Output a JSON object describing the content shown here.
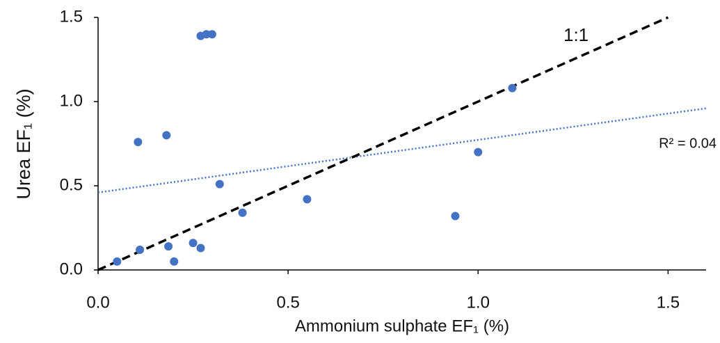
{
  "chart_data": {
    "type": "scatter",
    "x_label": "Ammonium sulphate EF₁ (%)",
    "y_label": "Urea EF₁ (%)",
    "series": [
      {
        "color": "#4472c4",
        "x": [
          0.05,
          0.11,
          0.105,
          0.18,
          0.185,
          0.2,
          0.25,
          0.27,
          0.27,
          0.285,
          0.3,
          0.32,
          0.38,
          0.55,
          0.94,
          1.0,
          1.09
        ],
        "values": [
          0.05,
          0.12,
          0.76,
          0.8,
          0.14,
          0.05,
          0.16,
          0.13,
          1.39,
          1.4,
          1.4,
          0.51,
          0.34,
          0.42,
          0.32,
          0.7,
          1.08
        ]
      }
    ],
    "reference_line": {
      "label": "1:1",
      "color": "#000000",
      "x": [
        0,
        1.5
      ],
      "values": [
        0,
        1.5
      ]
    },
    "trendline": {
      "label": "R² = 0.04",
      "color": "#4472c4",
      "x": [
        0,
        1.6
      ],
      "values": [
        0.46,
        0.96
      ]
    },
    "xlim": [
      0,
      1.6
    ],
    "ylim": [
      0,
      1.5
    ],
    "xticks": [
      {
        "value": 0,
        "label": "0.0"
      },
      {
        "value": 0.5,
        "label": "0.5"
      },
      {
        "value": 1,
        "label": "1.0"
      },
      {
        "value": 1.5,
        "label": "1.5"
      }
    ],
    "yticks": [
      {
        "value": 0,
        "label": "0.0"
      },
      {
        "value": 0.5,
        "label": "0.5"
      },
      {
        "value": 1,
        "label": "1.0"
      },
      {
        "value": 1.5,
        "label": "1.5"
      }
    ],
    "grid": false
  }
}
